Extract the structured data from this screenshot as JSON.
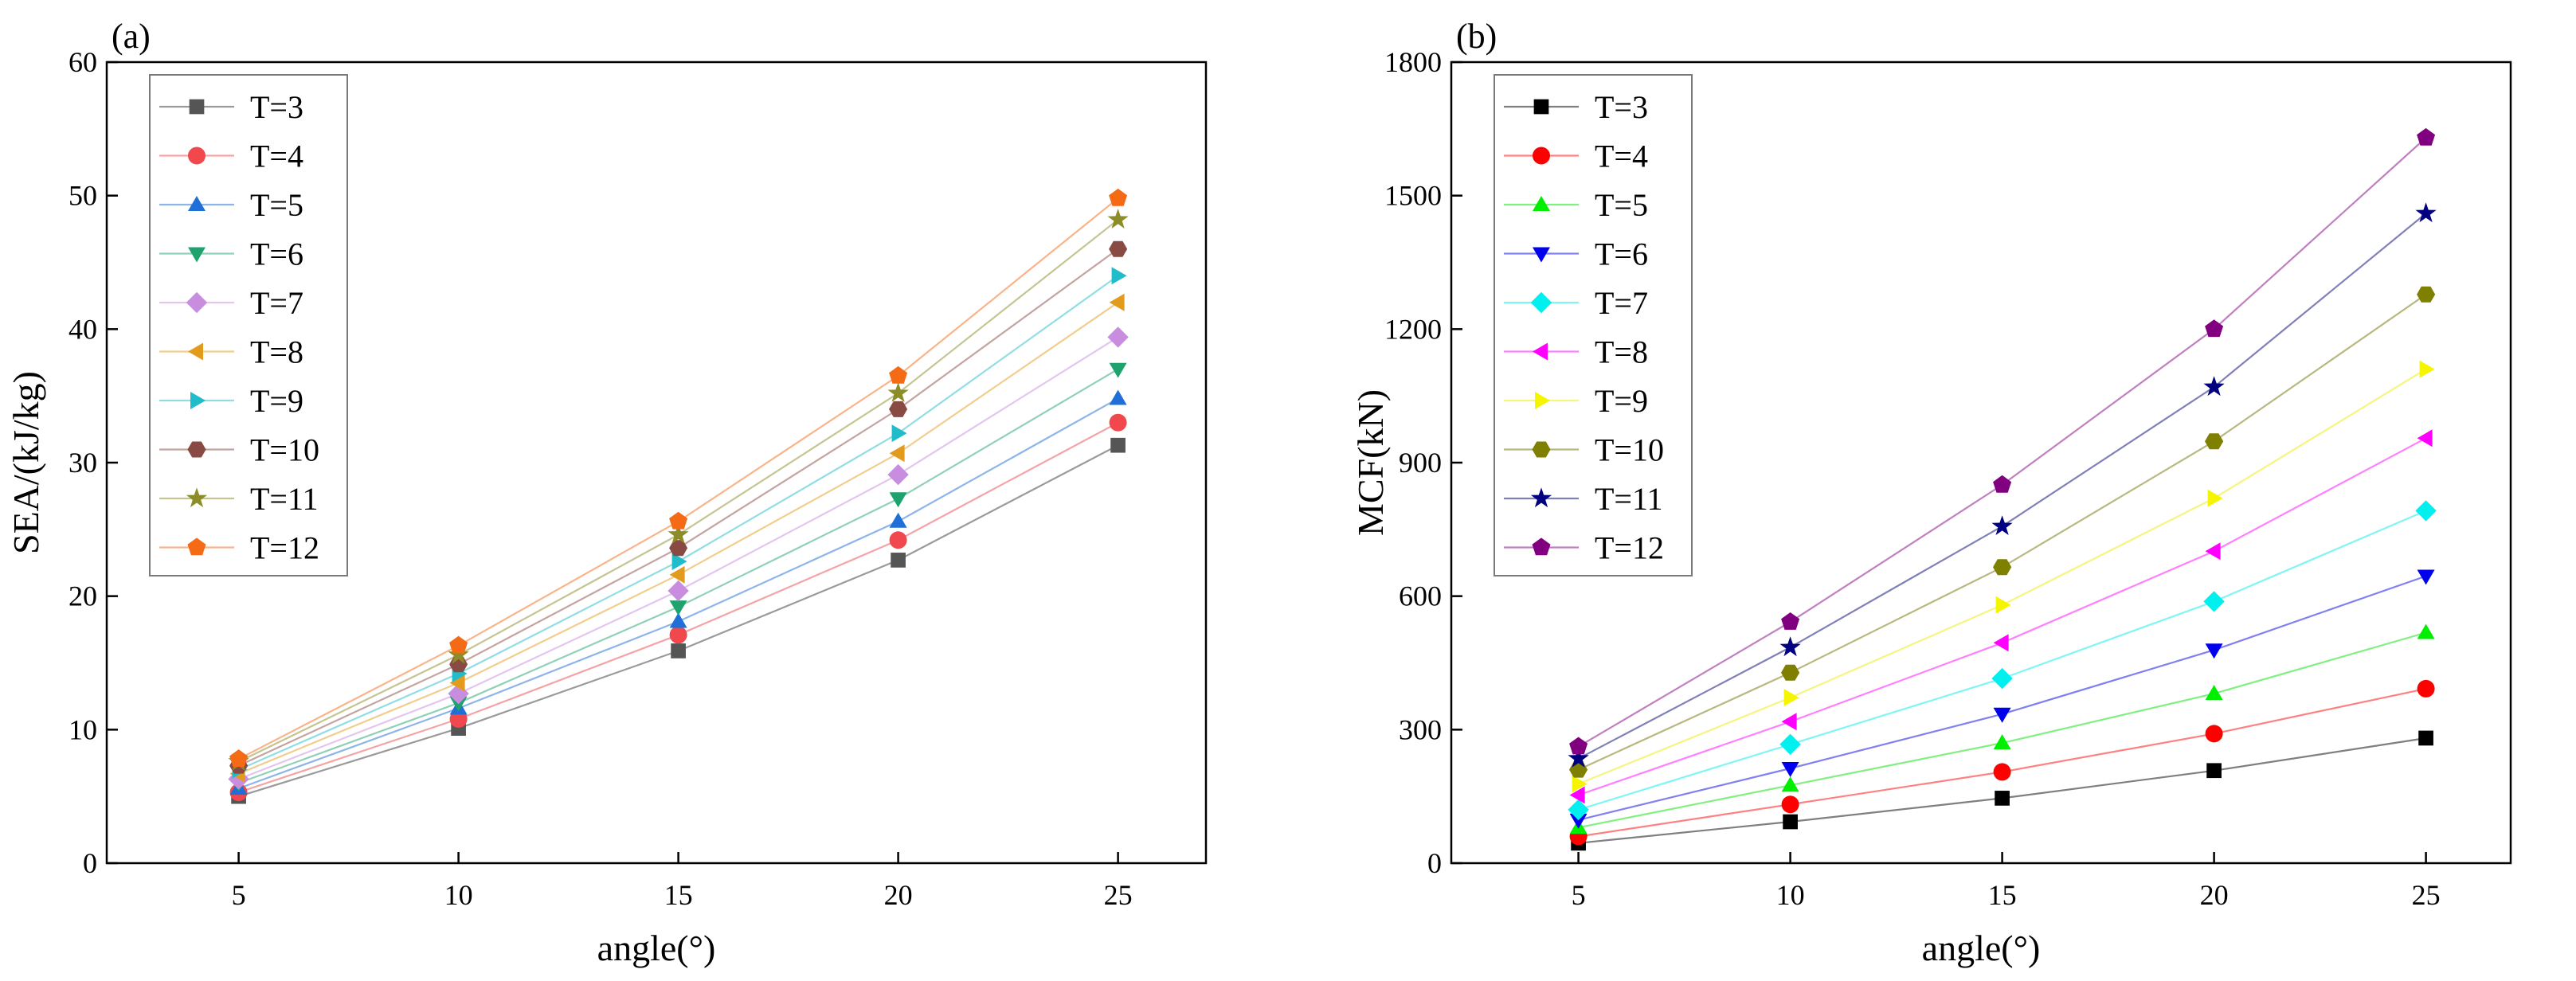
{
  "chart_data": [
    {
      "type": "line",
      "panel_label": "(a)",
      "xlabel": "angle(°)",
      "ylabel": "SEA/(kJ/kg)",
      "xlim": [
        2,
        27
      ],
      "ylim": [
        0,
        60
      ],
      "xticks": [
        5,
        10,
        15,
        20,
        25
      ],
      "yticks": [
        0,
        10,
        20,
        30,
        40,
        50,
        60
      ],
      "x": [
        5,
        10,
        15,
        20,
        25
      ],
      "legend_position": "top-left",
      "series": [
        {
          "name": "T=3",
          "marker": "square",
          "color": "#555555",
          "line_color": "#9a9a9a",
          "values": [
            5.0,
            10.1,
            15.9,
            22.7,
            31.3
          ]
        },
        {
          "name": "T=4",
          "marker": "circle",
          "color": "#f0484d",
          "line_color": "#f4a3a6",
          "values": [
            5.3,
            10.8,
            17.1,
            24.2,
            33.0
          ]
        },
        {
          "name": "T=5",
          "marker": "triangle-up",
          "color": "#1f6fd6",
          "line_color": "#8db5ea",
          "values": [
            5.6,
            11.6,
            18.1,
            25.6,
            34.8
          ]
        },
        {
          "name": "T=6",
          "marker": "triangle-down",
          "color": "#1ea36e",
          "line_color": "#8fd1b6",
          "values": [
            6.0,
            12.0,
            19.2,
            27.3,
            37.0
          ]
        },
        {
          "name": "T=7",
          "marker": "diamond",
          "color": "#c98de0",
          "line_color": "#e4c5ef",
          "values": [
            6.3,
            12.7,
            20.4,
            29.1,
            39.4
          ]
        },
        {
          "name": "T=8",
          "marker": "triangle-left",
          "color": "#e39b1d",
          "line_color": "#f1cd8e",
          "values": [
            6.7,
            13.5,
            21.6,
            30.7,
            42.0
          ]
        },
        {
          "name": "T=9",
          "marker": "triangle-right",
          "color": "#20bcc9",
          "line_color": "#90dde4",
          "values": [
            7.0,
            14.2,
            22.6,
            32.2,
            44.0
          ]
        },
        {
          "name": "T=10",
          "marker": "hexagon",
          "color": "#8a4a44",
          "line_color": "#c4a4a1",
          "values": [
            7.3,
            14.9,
            23.6,
            34.0,
            46.0
          ]
        },
        {
          "name": "T=11",
          "marker": "star",
          "color": "#8c8c28",
          "line_color": "#c5c593",
          "values": [
            7.6,
            15.6,
            24.6,
            35.2,
            48.2
          ]
        },
        {
          "name": "T=12",
          "marker": "pentagon",
          "color": "#f56a15",
          "line_color": "#fab48a",
          "values": [
            7.8,
            16.3,
            25.6,
            36.5,
            49.8
          ]
        }
      ]
    },
    {
      "type": "line",
      "panel_label": "(b)",
      "xlabel": "angle(°)",
      "ylabel": "MCF(kN)",
      "xlim": [
        2,
        27
      ],
      "ylim": [
        0,
        1800
      ],
      "xticks": [
        5,
        10,
        15,
        20,
        25
      ],
      "yticks": [
        0,
        300,
        600,
        900,
        1200,
        1500,
        1800
      ],
      "x": [
        5,
        10,
        15,
        20,
        25
      ],
      "legend_position": "top-left",
      "series": [
        {
          "name": "T=3",
          "marker": "square",
          "color": "#000000",
          "line_color": "#7f7f7f",
          "values": [
            45,
            93,
            146,
            208,
            281
          ]
        },
        {
          "name": "T=4",
          "marker": "circle",
          "color": "#ff0000",
          "line_color": "#ff8080",
          "values": [
            60,
            132,
            205,
            291,
            392
          ]
        },
        {
          "name": "T=5",
          "marker": "triangle-up",
          "color": "#00ee00",
          "line_color": "#80f080",
          "values": [
            80,
            175,
            270,
            381,
            518
          ]
        },
        {
          "name": "T=6",
          "marker": "triangle-down",
          "color": "#0000ee",
          "line_color": "#8080f0",
          "values": [
            97,
            213,
            335,
            479,
            645
          ]
        },
        {
          "name": "T=7",
          "marker": "diamond",
          "color": "#00f0f0",
          "line_color": "#80f5f5",
          "values": [
            120,
            267,
            415,
            588,
            792
          ]
        },
        {
          "name": "T=8",
          "marker": "triangle-left",
          "color": "#ff00ff",
          "line_color": "#ff80ff",
          "values": [
            153,
            318,
            495,
            701,
            955
          ]
        },
        {
          "name": "T=9",
          "marker": "triangle-right",
          "color": "#f5f500",
          "line_color": "#f5f580",
          "values": [
            178,
            372,
            580,
            820,
            1110
          ]
        },
        {
          "name": "T=10",
          "marker": "hexagon",
          "color": "#7f7f00",
          "line_color": "#b8b880",
          "values": [
            210,
            428,
            665,
            948,
            1278
          ]
        },
        {
          "name": "T=11",
          "marker": "star",
          "color": "#000080",
          "line_color": "#8080b8",
          "values": [
            235,
            485,
            757,
            1070,
            1460
          ]
        },
        {
          "name": "T=12",
          "marker": "pentagon",
          "color": "#800080",
          "line_color": "#c080c0",
          "values": [
            262,
            542,
            850,
            1200,
            1630
          ]
        }
      ]
    }
  ]
}
